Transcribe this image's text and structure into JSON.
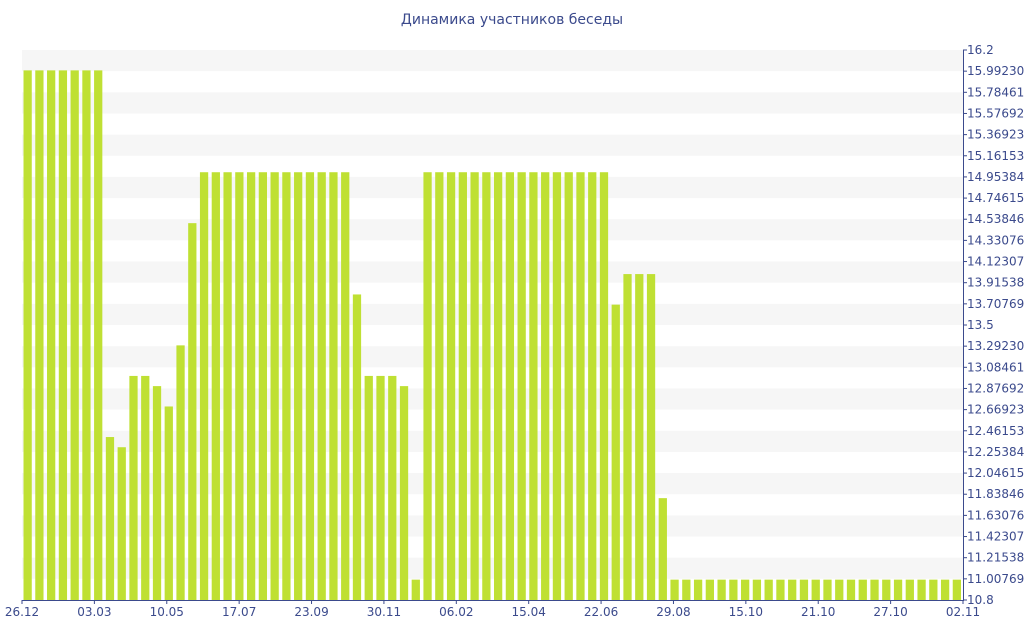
{
  "chart_data": {
    "type": "bar",
    "title": "Динамика участников беседы",
    "xlabel": "",
    "ylabel": "",
    "ylim": [
      10.8,
      16.2
    ],
    "grid": "horizontal bands",
    "colors": {
      "bar": "#bfe033",
      "band": "#f6f6f6",
      "text": "#3b4a8c",
      "axis": "#3b4a8c"
    },
    "x_tick_labels": [
      "26.12",
      "03.03",
      "10.05",
      "17.07",
      "23.09",
      "30.11",
      "06.02",
      "15.04",
      "22.06",
      "29.08",
      "15.10",
      "21.10",
      "27.10",
      "02.11"
    ],
    "y_tick_labels": [
      "16.2",
      "15.99230",
      "15.78461",
      "15.57692",
      "15.36923",
      "15.16153",
      "14.95384",
      "14.74615",
      "14.53846",
      "14.33076",
      "14.12307",
      "13.91538",
      "13.70769",
      "13.5",
      "13.29230",
      "13.08461",
      "12.87692",
      "12.66923",
      "12.46153",
      "12.25384",
      "12.04615",
      "11.83846",
      "11.63076",
      "11.42307",
      "11.21538",
      "11.00769",
      "10.8"
    ],
    "values": [
      16,
      16,
      16,
      16,
      16,
      16,
      16,
      12.4,
      12.3,
      13,
      13,
      12.9,
      12.7,
      13.3,
      14.5,
      15,
      15,
      15,
      15,
      15,
      15,
      15,
      15,
      15,
      15,
      15,
      15,
      15,
      13.8,
      13,
      13,
      13,
      12.9,
      11,
      15,
      15,
      15,
      15,
      15,
      15,
      15,
      15,
      15,
      15,
      15,
      15,
      15,
      15,
      15,
      15,
      13.7,
      14,
      14,
      14,
      11.8,
      11,
      11,
      11,
      11,
      11,
      11,
      11,
      11,
      11,
      11,
      11,
      11,
      11,
      11,
      11,
      11,
      11,
      11,
      11,
      11,
      11,
      11,
      11,
      11,
      11
    ]
  }
}
